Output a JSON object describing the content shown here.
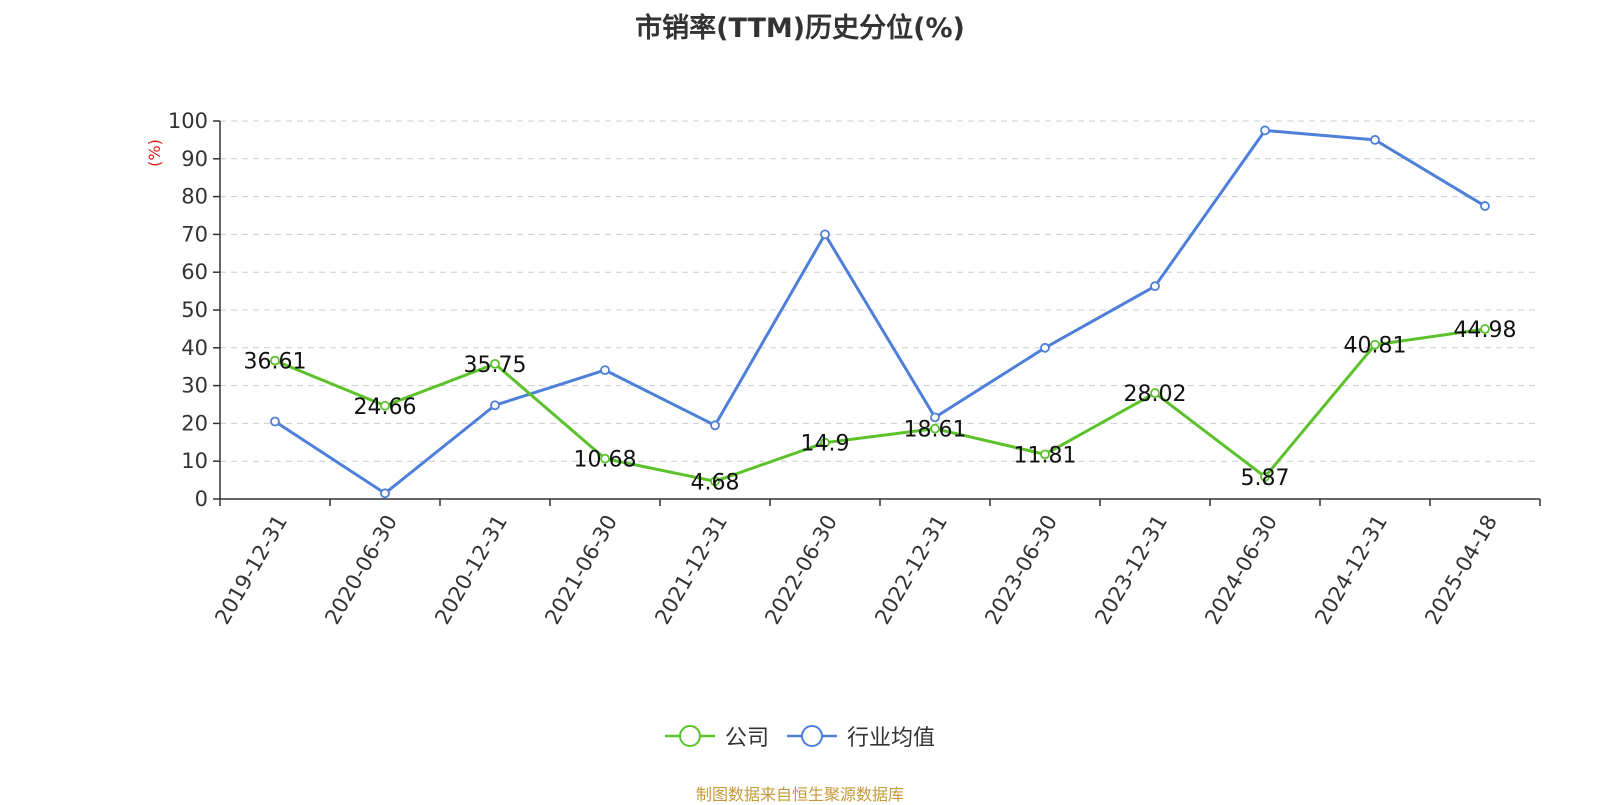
{
  "chart_data": {
    "type": "line",
    "title": "市销率(TTM)历史分位(%)",
    "ylabel": "(%)",
    "ylim": [
      0,
      100
    ],
    "yticks": [
      0,
      10,
      20,
      30,
      40,
      50,
      60,
      70,
      80,
      90,
      100
    ],
    "categories": [
      "2019-12-31",
      "2020-06-30",
      "2020-12-31",
      "2021-06-30",
      "2021-12-31",
      "2022-06-30",
      "2022-12-31",
      "2023-06-30",
      "2023-12-31",
      "2024-06-30",
      "2024-12-31",
      "2025-04-18"
    ],
    "series": [
      {
        "name": "公司",
        "color": "#5bc22b",
        "values": [
          36.61,
          24.66,
          35.75,
          10.68,
          4.68,
          14.9,
          18.61,
          11.81,
          28.02,
          5.87,
          40.81,
          44.98
        ],
        "labels": [
          "36.61",
          "24.66",
          "35.75",
          "10.68",
          "4.68",
          "14.9",
          "18.61",
          "11.81",
          "28.02",
          "5.87",
          "40.81",
          "44.98"
        ]
      },
      {
        "name": "行业均值",
        "color": "#4e7fd9",
        "values": [
          20.5,
          1.5,
          24.8,
          34.1,
          19.5,
          70.0,
          21.6,
          40.0,
          56.3,
          97.5,
          95.0,
          77.5
        ]
      }
    ],
    "grid": true,
    "legend_position": "bottom-center"
  },
  "source_text": "制图数据来自恒生聚源数据库"
}
